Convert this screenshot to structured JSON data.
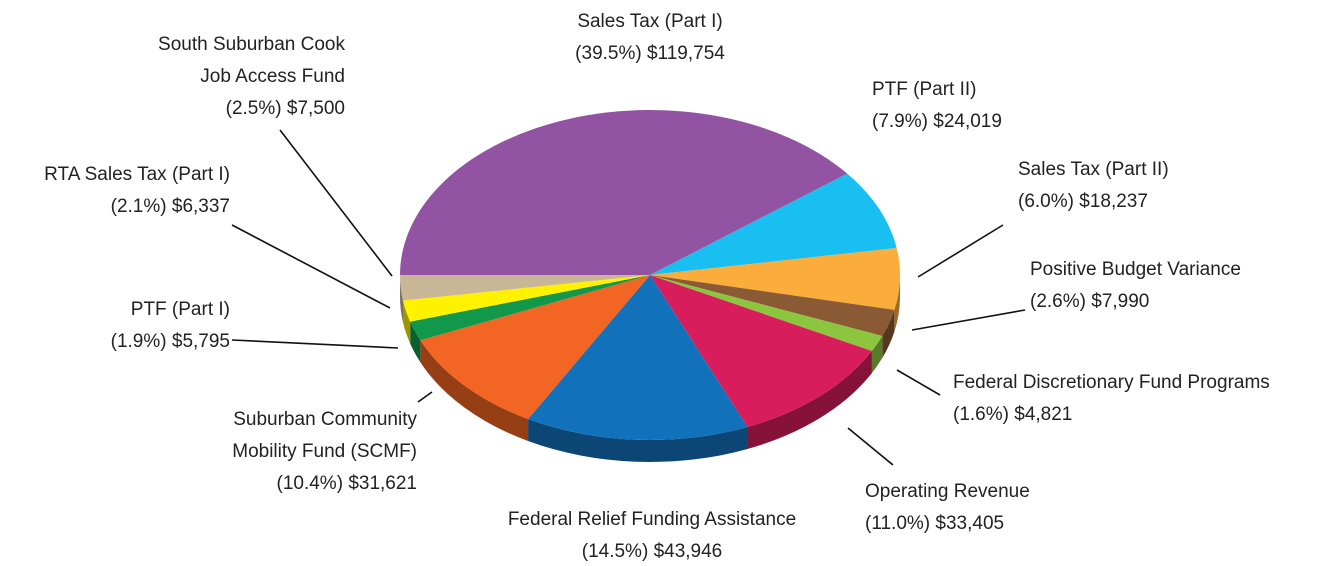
{
  "chart_data": {
    "type": "pie",
    "categories": [
      "Sales Tax (Part I)",
      "PTF (Part II)",
      "Sales Tax (Part II)",
      "Positive Budget Variance",
      "Federal Discretionary Fund Programs",
      "Operating Revenue",
      "Federal Relief Funding Assistance",
      "Suburban Community Mobility Fund (SCMF)",
      "PTF (Part I)",
      "RTA Sales Tax (Part I)",
      "South Suburban Cook Job Access Fund"
    ],
    "values": [
      119754,
      24019,
      18237,
      7990,
      4821,
      33405,
      43946,
      31621,
      5795,
      6337,
      7500
    ],
    "value_labels": [
      "$119,754",
      "$24,019",
      "$18,237",
      "$7,990",
      "$4,821",
      "$33,405",
      "$43,946",
      "$31,621",
      "$5,795",
      "$6,337",
      "$7,500"
    ],
    "percents": [
      39.5,
      7.9,
      6.0,
      2.6,
      1.6,
      11.0,
      14.5,
      10.4,
      1.9,
      2.1,
      2.5
    ],
    "percent_labels": [
      "(39.5%)",
      "(7.9%)",
      "(6.0%)",
      "(2.6%)",
      "(1.6%)",
      "(11.0%)",
      "(14.5%)",
      "(10.4%)",
      "(1.9%)",
      "(2.1%)",
      "(2.5%)"
    ],
    "colors": [
      "#9353a3",
      "#18bff0",
      "#fbad3c",
      "#8a5a35",
      "#8cc63f",
      "#d81d5d",
      "#1171bb",
      "#f26522",
      "#12984a",
      "#fff200",
      "#c8b697"
    ]
  }
}
